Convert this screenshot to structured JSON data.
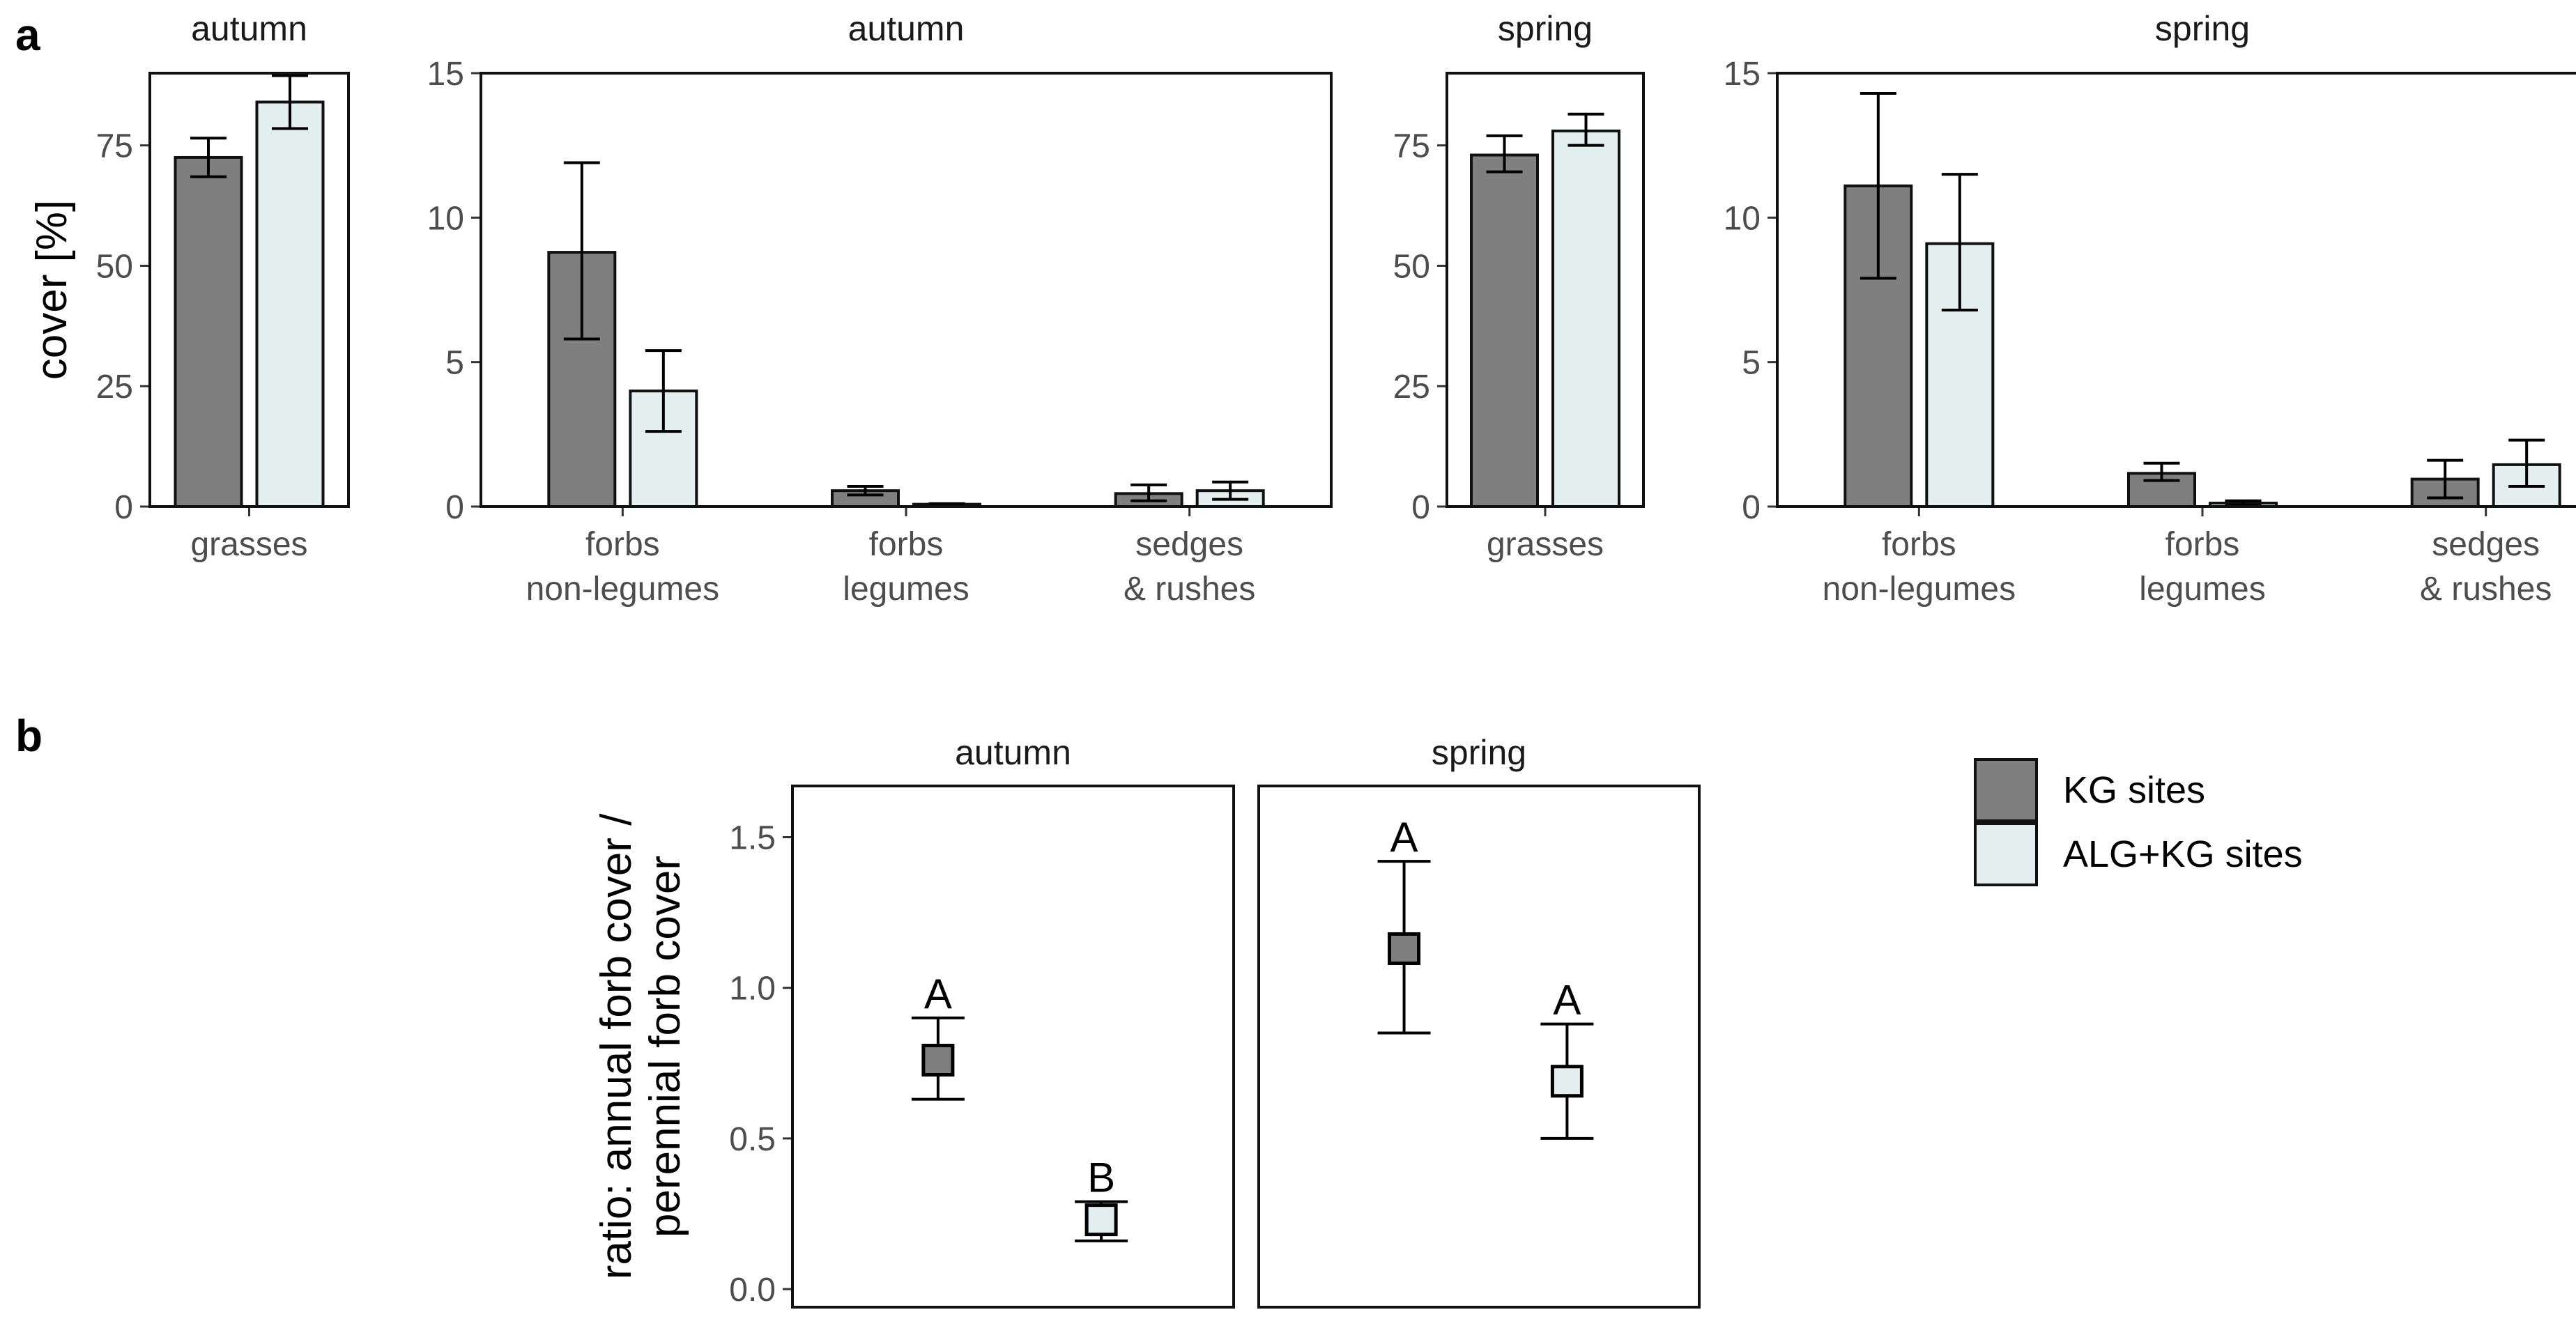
{
  "panel_labels": {
    "a": "a",
    "b": "b"
  },
  "legend": {
    "items": [
      {
        "label": "KG sites",
        "color": "#7f7f7f"
      },
      {
        "label": "ALG+KG sites",
        "color": "#e3efef"
      }
    ]
  },
  "chart_data": [
    {
      "type": "bar",
      "strip": "autumn",
      "ylabel": "cover [%]",
      "categories": [
        "grasses"
      ],
      "ylim": [
        0,
        90
      ],
      "yticks": [
        0,
        25,
        50,
        75
      ],
      "series": [
        {
          "name": "KG sites",
          "values": [
            72.5
          ],
          "err_low": [
            68.5
          ],
          "err_high": [
            76.5
          ]
        },
        {
          "name": "ALG+KG sites",
          "values": [
            84
          ],
          "err_low": [
            78.5
          ],
          "err_high": [
            89.5
          ]
        }
      ]
    },
    {
      "type": "bar",
      "strip": "autumn",
      "categories": [
        "forbs\nnon-legumes",
        "forbs\nlegumes",
        "sedges\n& rushes"
      ],
      "ylim": [
        0,
        15
      ],
      "yticks": [
        0,
        5,
        10,
        15
      ],
      "series": [
        {
          "name": "KG sites",
          "values": [
            8.8,
            0.55,
            0.45
          ],
          "err_low": [
            5.8,
            0.4,
            0.2
          ],
          "err_high": [
            11.9,
            0.7,
            0.75
          ]
        },
        {
          "name": "ALG+KG sites",
          "values": [
            4.0,
            0.08,
            0.55
          ],
          "err_low": [
            2.6,
            0.05,
            0.25
          ],
          "err_high": [
            5.4,
            0.1,
            0.85
          ]
        }
      ]
    },
    {
      "type": "bar",
      "strip": "spring",
      "categories": [
        "grasses"
      ],
      "ylim": [
        0,
        90
      ],
      "yticks": [
        0,
        25,
        50,
        75
      ],
      "series": [
        {
          "name": "KG sites",
          "values": [
            73
          ],
          "err_low": [
            69.5
          ],
          "err_high": [
            77
          ]
        },
        {
          "name": "ALG+KG sites",
          "values": [
            78
          ],
          "err_low": [
            75
          ],
          "err_high": [
            81.5
          ]
        }
      ]
    },
    {
      "type": "bar",
      "strip": "spring",
      "categories": [
        "forbs\nnon-legumes",
        "forbs\nlegumes",
        "sedges\n& rushes"
      ],
      "ylim": [
        0,
        15
      ],
      "yticks": [
        0,
        5,
        10,
        15
      ],
      "series": [
        {
          "name": "KG sites",
          "values": [
            11.1,
            1.15,
            0.95
          ],
          "err_low": [
            7.9,
            0.9,
            0.3
          ],
          "err_high": [
            14.3,
            1.5,
            1.6
          ]
        },
        {
          "name": "ALG+KG sites",
          "values": [
            9.1,
            0.12,
            1.45
          ],
          "err_low": [
            6.8,
            0.05,
            0.7
          ],
          "err_high": [
            11.5,
            0.2,
            2.3
          ]
        }
      ]
    },
    {
      "type": "scatter",
      "ylabel": "ratio: annual forb cover /\nperennial forb cover",
      "ylim": [
        -0.06,
        1.67
      ],
      "yticks": [
        0.0,
        0.5,
        1.0,
        1.5
      ],
      "ytick_labels": [
        "0.0",
        "0.5",
        "1.0",
        "1.5"
      ],
      "facets": [
        {
          "strip": "autumn",
          "points": [
            {
              "series": "KG sites",
              "value": 0.76,
              "err_low": 0.63,
              "err_high": 0.9,
              "letter": "A"
            },
            {
              "series": "ALG+KG sites",
              "value": 0.23,
              "err_low": 0.16,
              "err_high": 0.29,
              "letter": "B"
            }
          ]
        },
        {
          "strip": "spring",
          "points": [
            {
              "series": "KG sites",
              "value": 1.13,
              "err_low": 0.85,
              "err_high": 1.42,
              "letter": "A"
            },
            {
              "series": "ALG+KG sites",
              "value": 0.69,
              "err_low": 0.5,
              "err_high": 0.88,
              "letter": "A"
            }
          ]
        }
      ]
    }
  ]
}
